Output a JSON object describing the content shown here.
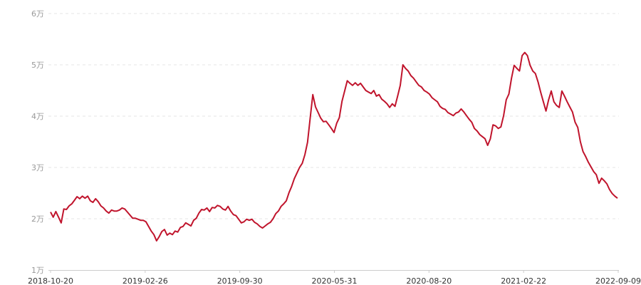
{
  "chart_data": {
    "type": "line",
    "title": "",
    "xlabel": "",
    "ylabel": "",
    "ylim": [
      1,
      6
    ],
    "y_unit": "万",
    "y_ticks": [
      "1万",
      "2万",
      "3万",
      "4万",
      "5万",
      "6万"
    ],
    "x_ticks": [
      "2018-10-20",
      "2019-02-26",
      "2019-09-30",
      "2020-05-31",
      "2020-08-20",
      "2021-02-22",
      "2022-09-09"
    ],
    "grid": "horizontal dashed",
    "line_color": "#c0142c",
    "grid_color": "#e6e6e6",
    "axis_color": "#cccccc",
    "series": [
      {
        "values": [
          2.13,
          2.03,
          2.14,
          2.03,
          1.92,
          2.19,
          2.18,
          2.25,
          2.29,
          2.36,
          2.43,
          2.39,
          2.44,
          2.4,
          2.44,
          2.35,
          2.32,
          2.39,
          2.33,
          2.25,
          2.21,
          2.15,
          2.11,
          2.17,
          2.15,
          2.15,
          2.17,
          2.21,
          2.19,
          2.13,
          2.07,
          2.01,
          2.01,
          1.99,
          1.97,
          1.97,
          1.94,
          1.85,
          1.76,
          1.69,
          1.57,
          1.65,
          1.75,
          1.79,
          1.68,
          1.72,
          1.69,
          1.76,
          1.74,
          1.83,
          1.85,
          1.92,
          1.89,
          1.86,
          1.97,
          2.01,
          2.11,
          2.18,
          2.17,
          2.21,
          2.14,
          2.22,
          2.21,
          2.26,
          2.24,
          2.19,
          2.17,
          2.24,
          2.15,
          2.08,
          2.06,
          1.99,
          1.92,
          1.94,
          1.99,
          1.97,
          1.99,
          1.93,
          1.9,
          1.85,
          1.82,
          1.86,
          1.9,
          1.93,
          2.0,
          2.1,
          2.15,
          2.24,
          2.29,
          2.35,
          2.51,
          2.63,
          2.78,
          2.89,
          3.0,
          3.08,
          3.25,
          3.49,
          3.96,
          4.42,
          4.18,
          4.07,
          3.96,
          3.89,
          3.9,
          3.83,
          3.76,
          3.68,
          3.86,
          3.97,
          4.29,
          4.49,
          4.69,
          4.64,
          4.6,
          4.65,
          4.6,
          4.64,
          4.57,
          4.5,
          4.47,
          4.44,
          4.5,
          4.39,
          4.42,
          4.33,
          4.29,
          4.24,
          4.17,
          4.24,
          4.19,
          4.39,
          4.6,
          5.0,
          4.93,
          4.88,
          4.79,
          4.74,
          4.67,
          4.6,
          4.57,
          4.5,
          4.47,
          4.43,
          4.36,
          4.32,
          4.28,
          4.19,
          4.15,
          4.13,
          4.07,
          4.04,
          4.01,
          4.06,
          4.08,
          4.14,
          4.08,
          4.01,
          3.94,
          3.88,
          3.76,
          3.71,
          3.64,
          3.6,
          3.56,
          3.43,
          3.56,
          3.83,
          3.81,
          3.76,
          3.79,
          4.01,
          4.32,
          4.43,
          4.74,
          4.99,
          4.93,
          4.88,
          5.18,
          5.24,
          5.18,
          4.99,
          4.88,
          4.83,
          4.67,
          4.47,
          4.28,
          4.1,
          4.32,
          4.49,
          4.28,
          4.21,
          4.17,
          4.49,
          4.39,
          4.28,
          4.18,
          4.08,
          3.88,
          3.78,
          3.5,
          3.31,
          3.21,
          3.1,
          3.01,
          2.92,
          2.86,
          2.69,
          2.79,
          2.74,
          2.68,
          2.57,
          2.49,
          2.44,
          2.4
        ]
      }
    ]
  }
}
